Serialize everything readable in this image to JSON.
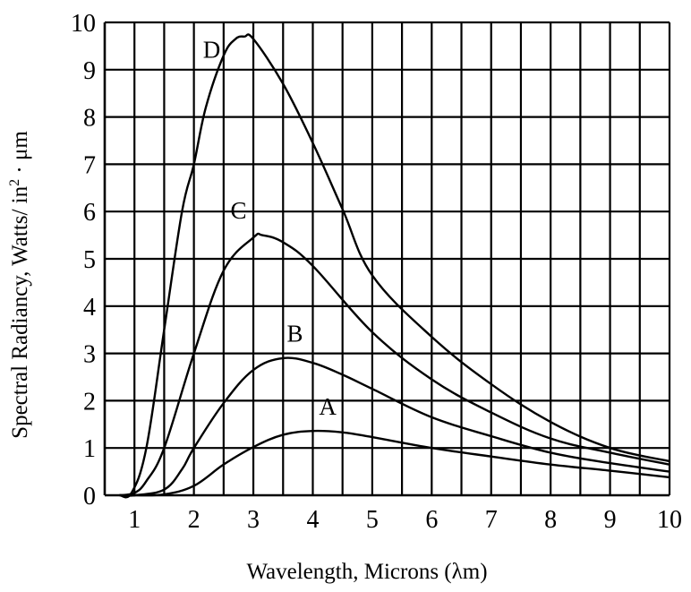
{
  "chart_data": {
    "type": "line",
    "title": "",
    "xlabel": "Wavelength, Microns (λm)",
    "ylabel": {
      "main": "Spectral Radiancy,  Watts/ in",
      "sup": "2",
      "tail": " · μm"
    },
    "xlim": [
      0.5,
      10
    ],
    "ylim": [
      0,
      10
    ],
    "x_ticks": [
      "1",
      "2",
      "3",
      "4",
      "5",
      "6",
      "7",
      "8",
      "9",
      "10"
    ],
    "y_ticks": [
      "0",
      "1",
      "2",
      "3",
      "4",
      "5",
      "6",
      "7",
      "8",
      "9",
      "10"
    ],
    "grid": true,
    "series": [
      {
        "name": "A",
        "points": [
          [
            0.75,
            0
          ],
          [
            1,
            0
          ],
          [
            1.5,
            0.02
          ],
          [
            2,
            0.2
          ],
          [
            2.5,
            0.65
          ],
          [
            3,
            1.02
          ],
          [
            3.5,
            1.28
          ],
          [
            4,
            1.36
          ],
          [
            4.5,
            1.33
          ],
          [
            5,
            1.23
          ],
          [
            6,
            1.0
          ],
          [
            7,
            0.82
          ],
          [
            8,
            0.65
          ],
          [
            9,
            0.52
          ],
          [
            10,
            0.38
          ]
        ]
      },
      {
        "name": "B",
        "points": [
          [
            0.75,
            0
          ],
          [
            1,
            0
          ],
          [
            1.5,
            0.12
          ],
          [
            1.8,
            0.55
          ],
          [
            2,
            1.0
          ],
          [
            2.5,
            1.95
          ],
          [
            3,
            2.65
          ],
          [
            3.5,
            2.9
          ],
          [
            4,
            2.8
          ],
          [
            4.5,
            2.55
          ],
          [
            5,
            2.25
          ],
          [
            6,
            1.65
          ],
          [
            7,
            1.25
          ],
          [
            8,
            0.9
          ],
          [
            9,
            0.68
          ],
          [
            10,
            0.5
          ]
        ]
      },
      {
        "name": "C",
        "points": [
          [
            0.75,
            0
          ],
          [
            1,
            0.05
          ],
          [
            1.2,
            0.3
          ],
          [
            1.5,
            1.0
          ],
          [
            2,
            3.0
          ],
          [
            2.5,
            4.75
          ],
          [
            3,
            5.45
          ],
          [
            3.15,
            5.5
          ],
          [
            3.5,
            5.35
          ],
          [
            4,
            4.85
          ],
          [
            5,
            3.45
          ],
          [
            6,
            2.45
          ],
          [
            7,
            1.75
          ],
          [
            8,
            1.2
          ],
          [
            9,
            0.9
          ],
          [
            10,
            0.65
          ]
        ]
      },
      {
        "name": "D",
        "points": [
          [
            0.75,
            0
          ],
          [
            0.95,
            0.05
          ],
          [
            1.2,
            1.0
          ],
          [
            1.5,
            3.5
          ],
          [
            1.8,
            6.0
          ],
          [
            2,
            7.0
          ],
          [
            2.2,
            8.2
          ],
          [
            2.5,
            9.3
          ],
          [
            2.7,
            9.65
          ],
          [
            2.85,
            9.7
          ],
          [
            3,
            9.65
          ],
          [
            3.5,
            8.7
          ],
          [
            4,
            7.45
          ],
          [
            4.5,
            6.05
          ],
          [
            5,
            4.65
          ],
          [
            6,
            3.35
          ],
          [
            7,
            2.35
          ],
          [
            8,
            1.55
          ],
          [
            9,
            1.0
          ],
          [
            10,
            0.72
          ]
        ]
      }
    ],
    "series_label_anchors": {
      "A": [
        4.25,
        1.7
      ],
      "B": [
        3.7,
        3.25
      ],
      "C": [
        2.75,
        5.85
      ],
      "D": [
        2.3,
        9.25
      ]
    }
  }
}
